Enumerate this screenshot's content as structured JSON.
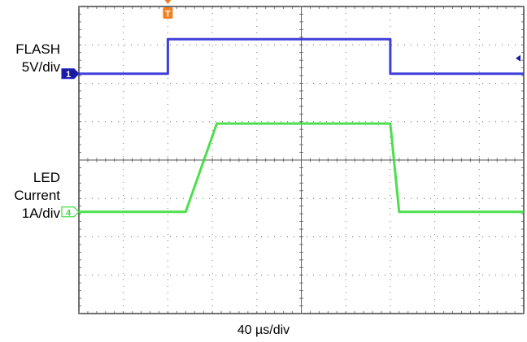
{
  "chart_data": {
    "type": "line",
    "title": "",
    "xlabel": "40 µs/div",
    "ylabel": "",
    "grid": true,
    "x_divisions": 10,
    "y_divisions": 8,
    "x_unit": "div",
    "xlim": [
      0,
      10
    ],
    "trigger_marker": "T",
    "trigger_x_div": 2,
    "series": [
      {
        "name": "FLASH",
        "channel_marker": "1",
        "scale_label": "5V/div",
        "color": "#2b2bd6",
        "x": [
          0,
          2.0,
          2.0,
          7.0,
          7.0,
          10
        ],
        "y_div_from_top": [
          1.75,
          1.75,
          0.85,
          0.85,
          1.75,
          1.75
        ]
      },
      {
        "name": "LED Current",
        "channel_marker": "4",
        "scale_label": "1A/div",
        "color": "#3adc3a",
        "x": [
          0,
          2.4,
          3.1,
          7.0,
          7.2,
          10
        ],
        "y_div_from_top": [
          5.35,
          5.35,
          3.05,
          3.05,
          5.35,
          5.35
        ]
      }
    ]
  },
  "labels": {
    "flash_line1": "FLASH",
    "flash_line2": "5V/div",
    "led_line1": "LED",
    "led_line2": "Current",
    "led_line3": "1A/div"
  }
}
